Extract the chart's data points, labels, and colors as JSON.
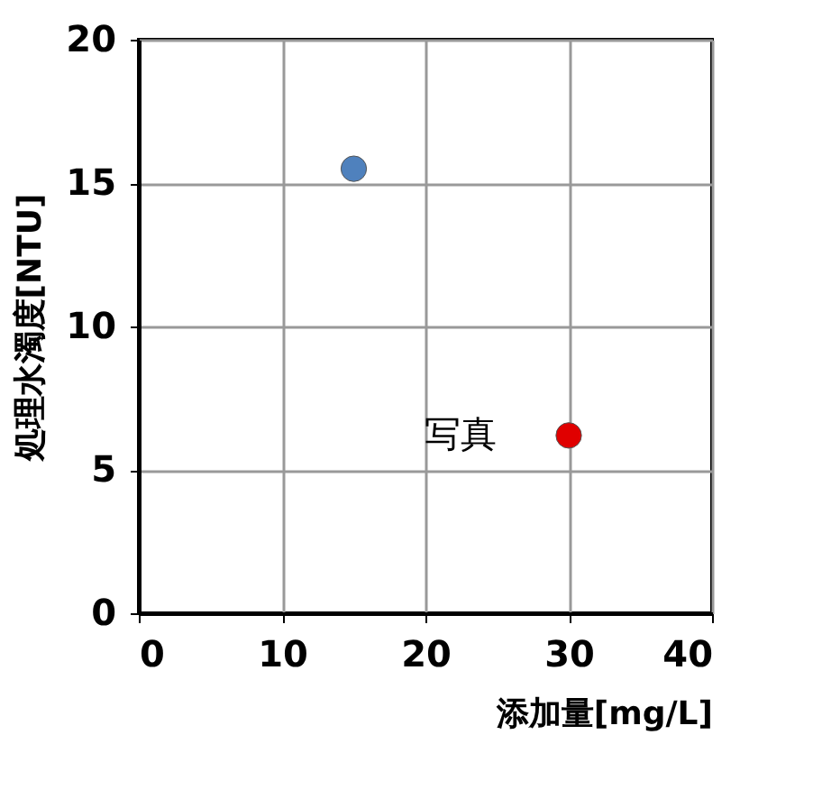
{
  "chart_data": {
    "type": "scatter",
    "xlabel": "添加量[mg/L]",
    "ylabel": "処理水濁度[NTU]",
    "series": [
      {
        "color": "#4f81bd",
        "x": [
          15
        ],
        "values": [
          15.5
        ]
      },
      {
        "color": "#e00000",
        "x": [
          30
        ],
        "values": [
          6.2
        ]
      }
    ],
    "xlim": [
      0,
      40
    ],
    "xticks": [
      0,
      10,
      20,
      30,
      40
    ],
    "ylim": [
      0,
      20
    ],
    "yticks": [
      0,
      5,
      10,
      15,
      20
    ],
    "grid": true,
    "marker": "circle",
    "annotations": [
      {
        "text": "写真",
        "x": 30,
        "y": 6.2
      }
    ]
  }
}
